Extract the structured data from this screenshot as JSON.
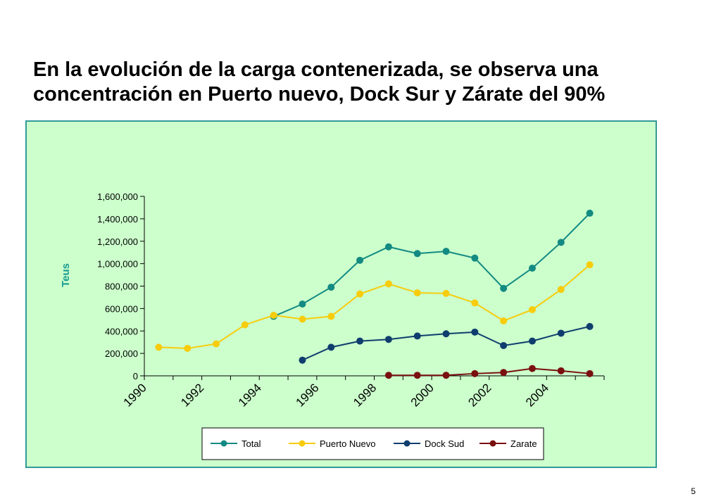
{
  "slide": {
    "title_line1": "En la evolución de la carga contenerizada, se observa una",
    "title_line2": "concentración en Puerto nuevo, Dock Sur y Zárate del 90%",
    "page_number": "5"
  },
  "colors": {
    "panel_background": "#ccffcc",
    "panel_border": "#339999"
  },
  "chart_data": {
    "type": "line",
    "title": "",
    "xlabel": "",
    "ylabel": "Teus",
    "ylim": [
      0,
      1600000
    ],
    "yticks": [
      0,
      200000,
      400000,
      600000,
      800000,
      1000000,
      1200000,
      1400000,
      1600000
    ],
    "ytick_labels": [
      "0",
      "200,000",
      "400,000",
      "600,000",
      "800,000",
      "1,000,000",
      "1,200,000",
      "1,400,000",
      "1,600,000"
    ],
    "x_categories": [
      1990,
      1991,
      1992,
      1993,
      1994,
      1995,
      1996,
      1997,
      1998,
      1999,
      2000,
      2001,
      2002,
      2003,
      2004,
      2005
    ],
    "xtick_labels": [
      "1990",
      "1992",
      "1994",
      "1996",
      "1998",
      "2000",
      "2002",
      "2004"
    ],
    "grid": false,
    "legend_position": "bottom",
    "series": [
      {
        "name": "Total",
        "color": "#138a82",
        "values": [
          null,
          null,
          null,
          null,
          530000,
          640000,
          790000,
          1030000,
          1150000,
          1090000,
          1110000,
          1050000,
          780000,
          960000,
          1190000,
          1450000
        ]
      },
      {
        "name": "Puerto Nuevo",
        "color": "#f7cc0d",
        "values": [
          255000,
          245000,
          285000,
          455000,
          540000,
          505000,
          530000,
          730000,
          820000,
          740000,
          735000,
          650000,
          490000,
          590000,
          770000,
          990000
        ]
      },
      {
        "name": "Dock Sud",
        "color": "#0f3d6e",
        "values": [
          null,
          null,
          null,
          null,
          null,
          140000,
          255000,
          310000,
          325000,
          355000,
          375000,
          390000,
          270000,
          310000,
          380000,
          440000
        ]
      },
      {
        "name": "Zarate",
        "color": "#7a0f0f",
        "values": [
          null,
          null,
          null,
          null,
          null,
          null,
          null,
          null,
          5000,
          5000,
          5000,
          20000,
          30000,
          65000,
          45000,
          20000
        ]
      }
    ]
  }
}
